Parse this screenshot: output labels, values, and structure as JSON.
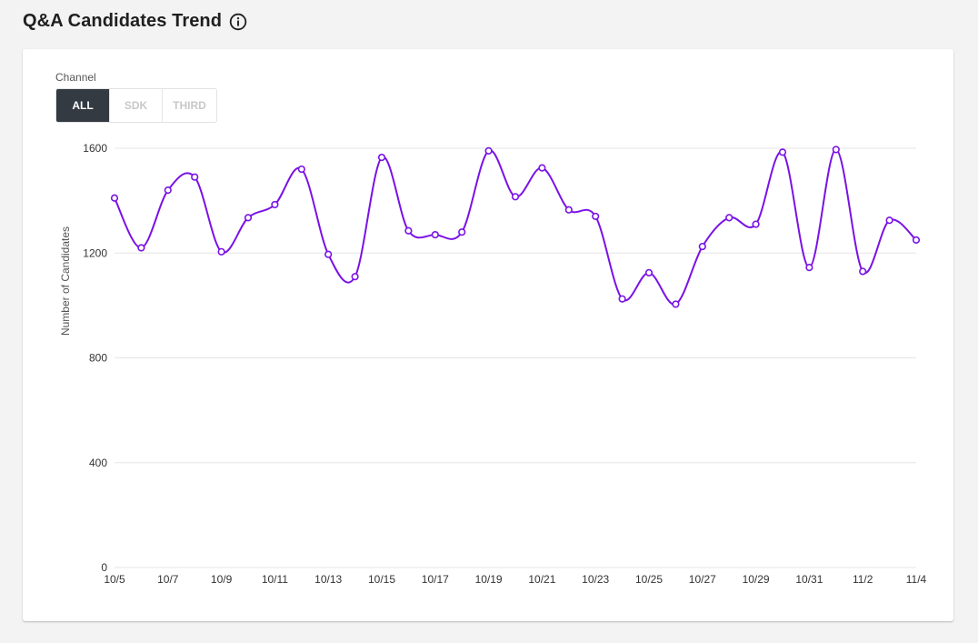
{
  "header": {
    "title": "Q&A Candidates Trend",
    "info_icon": "info-circle-icon"
  },
  "filter": {
    "label": "Channel",
    "options": [
      "ALL",
      "SDK",
      "THIRD"
    ],
    "selected": "ALL"
  },
  "colors": {
    "line": "#7a12e6",
    "active_button_bg": "#343a42",
    "grid": "#e6e6e6"
  },
  "chart_data": {
    "type": "line",
    "title": "",
    "xlabel": "",
    "ylabel": "Number of Candidates",
    "ylim": [
      0,
      1600
    ],
    "yticks": [
      0,
      400,
      800,
      1200,
      1600
    ],
    "x": [
      "10/5",
      "10/6",
      "10/7",
      "10/8",
      "10/9",
      "10/10",
      "10/11",
      "10/12",
      "10/13",
      "10/14",
      "10/15",
      "10/16",
      "10/17",
      "10/18",
      "10/19",
      "10/20",
      "10/21",
      "10/22",
      "10/23",
      "10/24",
      "10/25",
      "10/26",
      "10/27",
      "10/28",
      "10/29",
      "10/30",
      "10/31",
      "11/1",
      "11/2",
      "11/3",
      "11/4"
    ],
    "xtick_labels": [
      "10/5",
      "10/7",
      "10/9",
      "10/11",
      "10/13",
      "10/15",
      "10/17",
      "10/19",
      "10/21",
      "10/23",
      "10/25",
      "10/27",
      "10/29",
      "10/31",
      "11/2",
      "11/4"
    ],
    "grid": true,
    "legend": "none",
    "series": [
      {
        "values": [
          1410,
          1220,
          1440,
          1490,
          1205,
          1335,
          1385,
          1520,
          1195,
          1110,
          1565,
          1285,
          1270,
          1280,
          1590,
          1415,
          1525,
          1365,
          1340,
          1025,
          1125,
          1005,
          1225,
          1335,
          1310,
          1585,
          1145,
          1595,
          1130,
          1325,
          1250
        ]
      }
    ]
  }
}
